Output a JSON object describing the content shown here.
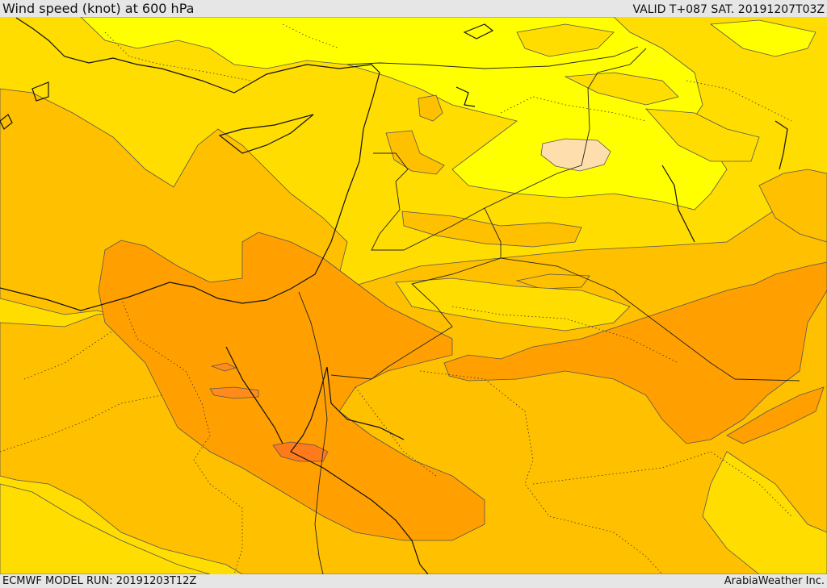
{
  "header": {
    "title": "Wind speed (knot) at 600 hPa",
    "valid_time": "VALID T+087 SAT. 20191207T03Z"
  },
  "footer": {
    "model_run": "ECMWF MODEL RUN: 20191203T12Z",
    "provider": "ArabiaWeather Inc."
  },
  "map": {
    "variable": "wind speed",
    "unit": "knot",
    "level_hpa": 600,
    "lead_hours": 87,
    "colors": {
      "band_lightest": "#ffdeae",
      "band_yellow": "#ffff00",
      "band_gold": "#ffdd00",
      "band_amber": "#ffc000",
      "band_orange": "#ffa000",
      "band_dark_orange": "#ff8c1a",
      "band_red_orange": "#ff7020",
      "coastline": "#111111",
      "border": "#222222",
      "contour": "#555555"
    }
  }
}
